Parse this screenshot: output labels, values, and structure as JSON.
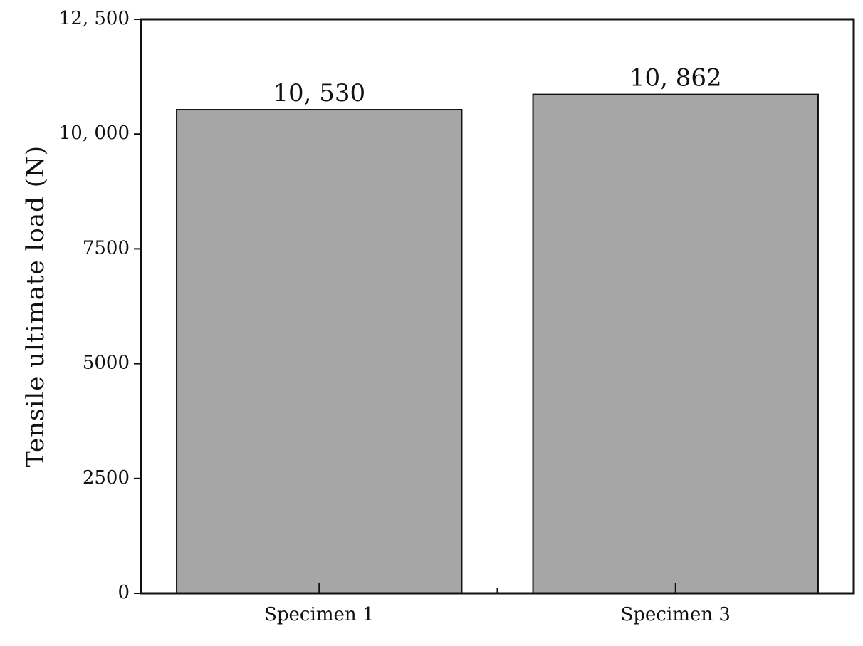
{
  "chart_data": {
    "type": "bar",
    "title": "",
    "xlabel": "",
    "ylabel": "Tensile ultimate load (N)",
    "categories": [
      "Specimen 1",
      "Specimen 3"
    ],
    "values": [
      10530,
      10862
    ],
    "data_labels": [
      "10, 530",
      "10, 862"
    ],
    "ylim": [
      0,
      12500
    ],
    "yticks": [
      0,
      2500,
      5000,
      7500,
      10000,
      12500
    ],
    "ytick_labels": [
      "0",
      "2500",
      "5000",
      "7500",
      "10, 000",
      "12, 500"
    ],
    "grid": false,
    "legend": "none",
    "colors": {
      "bar_fill": "#a6a6a6",
      "bar_stroke": "#111111",
      "axis": "#111111"
    }
  }
}
